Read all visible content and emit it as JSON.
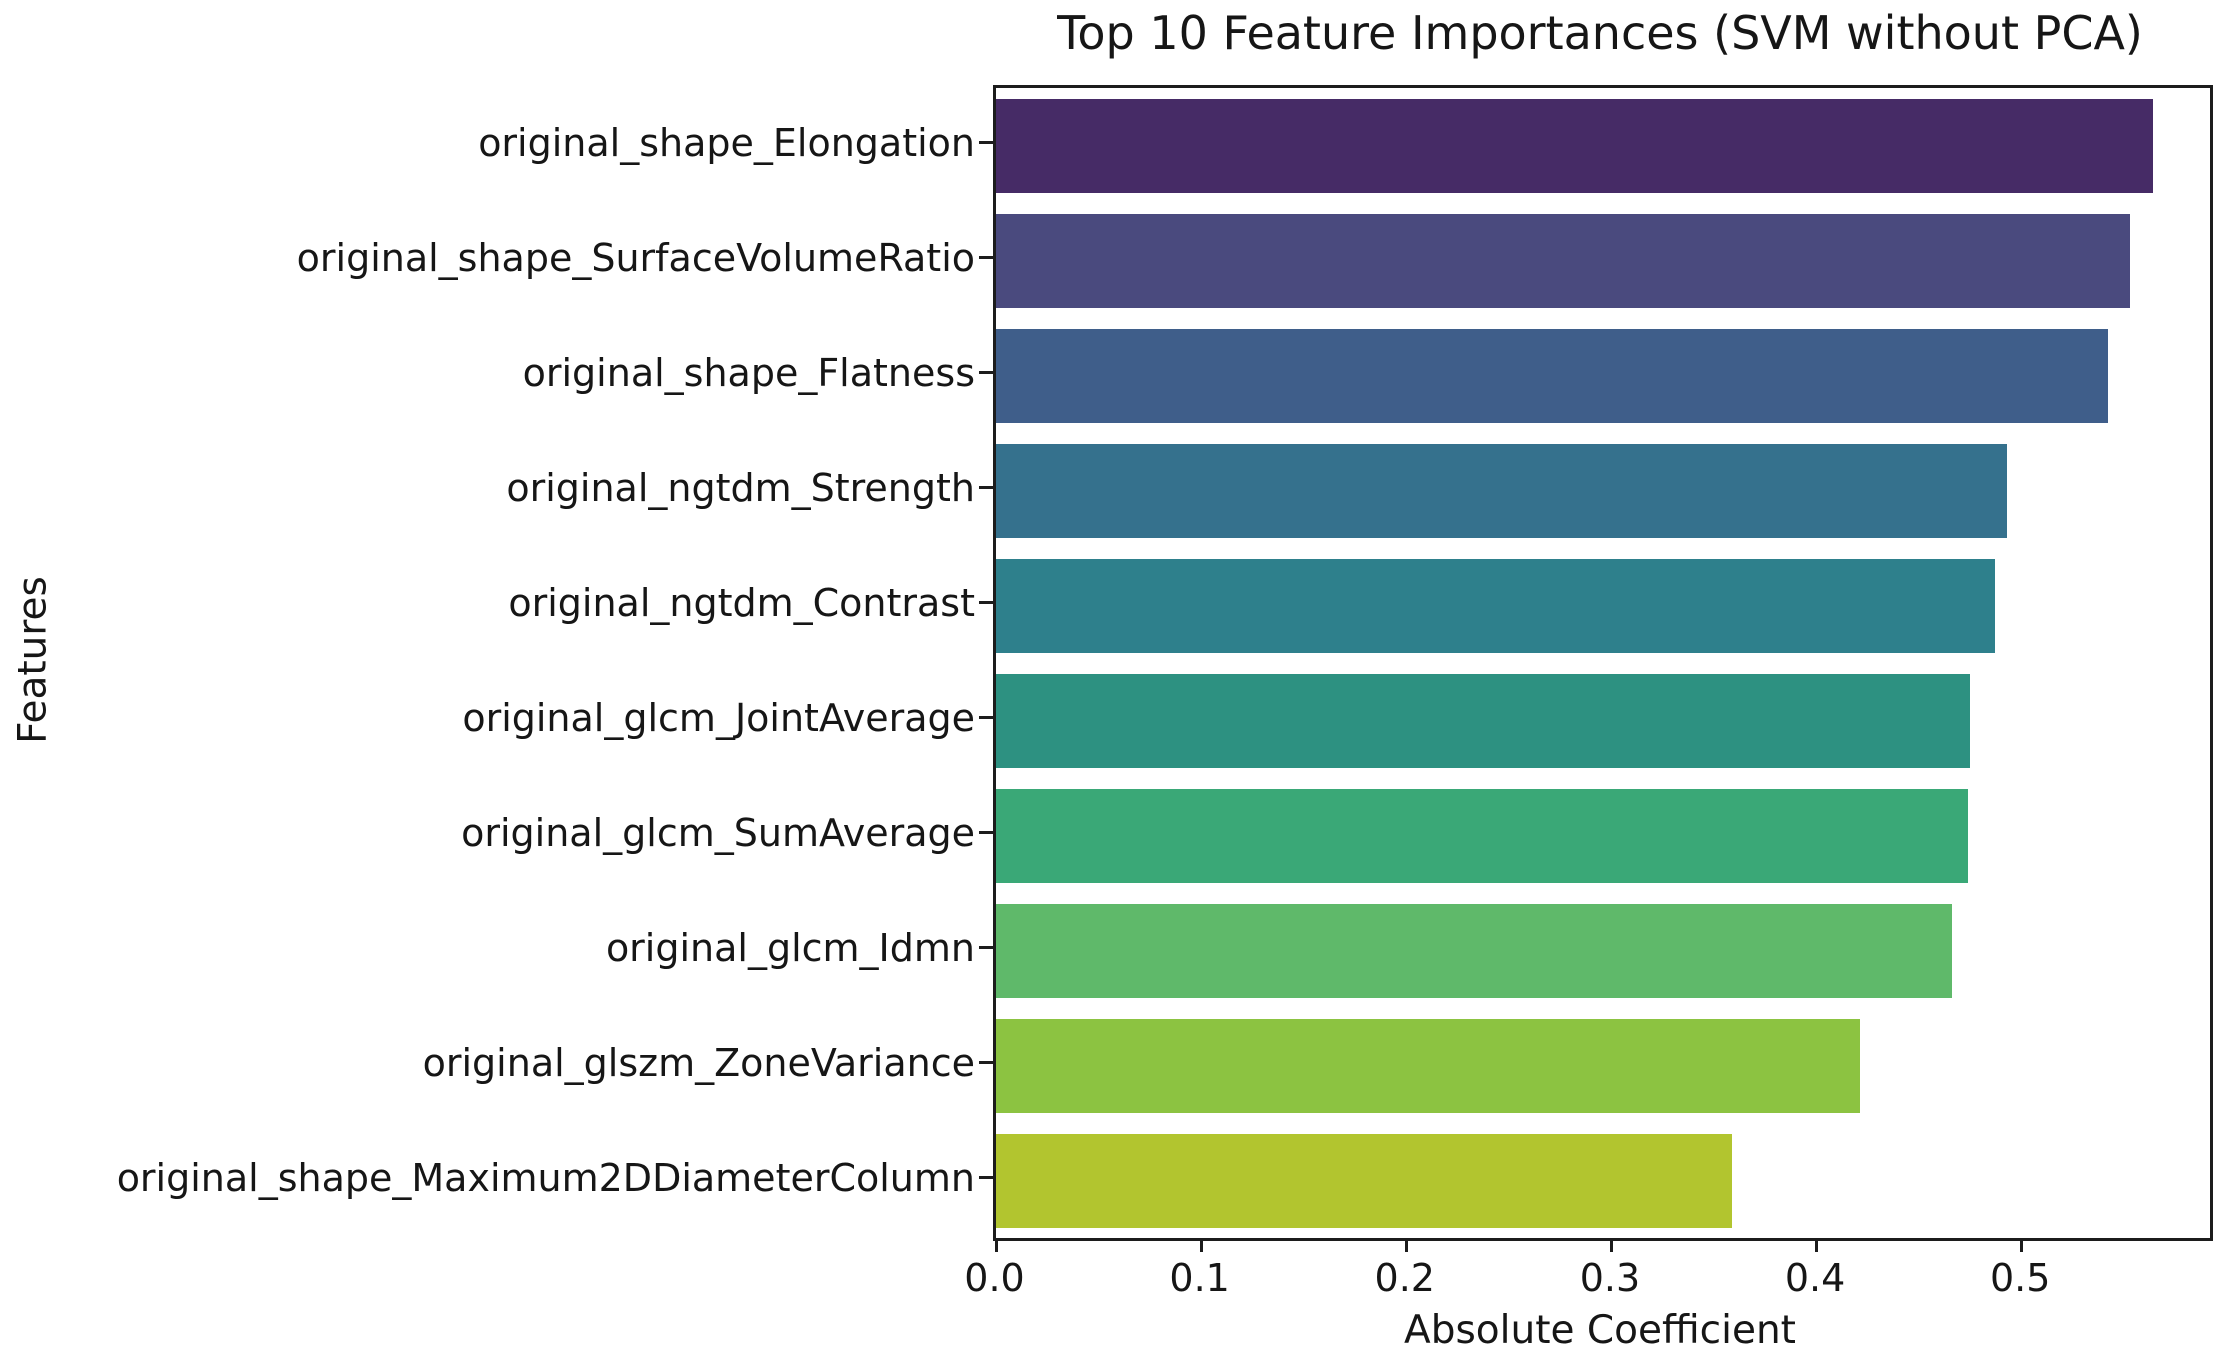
{
  "chart_data": {
    "type": "bar",
    "orientation": "horizontal",
    "title": "Top 10 Feature Importances (SVM without PCA)",
    "xlabel": "Absolute Coefficient",
    "ylabel": "Features",
    "categories": [
      "original_shape_Elongation",
      "original_shape_SurfaceVolumeRatio",
      "original_shape_Flatness",
      "original_ngtdm_Strength",
      "original_ngtdm_Contrast",
      "original_glcm_JointAverage",
      "original_glcm_SumAverage",
      "original_glcm_Idmn",
      "original_glszm_ZoneVariance",
      "original_shape_Maximum2DDiameterColumn"
    ],
    "values": [
      0.564,
      0.553,
      0.542,
      0.493,
      0.487,
      0.475,
      0.474,
      0.466,
      0.421,
      0.359
    ],
    "bar_colors": [
      "#462b66",
      "#4a4a7e",
      "#3f5e8a",
      "#35718d",
      "#2e808c",
      "#2d9181",
      "#3aa877",
      "#5fb96a",
      "#8cc341",
      "#b2c52f"
    ],
    "x_ticks": [
      0.0,
      0.1,
      0.2,
      0.3,
      0.4,
      0.5
    ],
    "x_tick_labels": [
      "0.0",
      "0.1",
      "0.2",
      "0.3",
      "0.4",
      "0.5"
    ],
    "xlim": [
      0,
      0.5918
    ],
    "grid": false,
    "legend": null
  }
}
